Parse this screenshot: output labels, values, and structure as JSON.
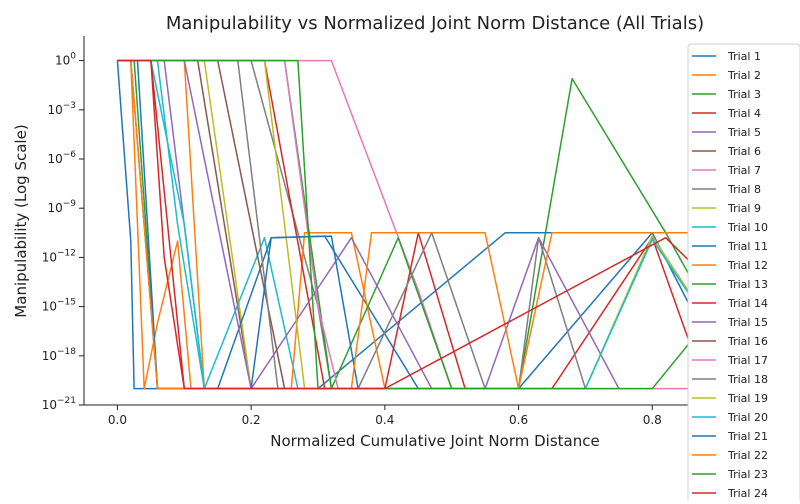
{
  "chart_data": {
    "type": "line",
    "title": "Manipulability vs Normalized Joint Norm Distance (All Trials)",
    "xlabel": "Normalized Cumulative Joint Norm Distance",
    "ylabel": "Manipulability (Log Scale)",
    "xlim": [
      -0.05,
      1.0
    ],
    "ylim_exponent": [
      -21,
      1.5
    ],
    "yscale": "log",
    "grid": false,
    "legend_position": "top-right",
    "x_ticks": [
      {
        "value": 0.0,
        "label": "0.0"
      },
      {
        "value": 0.2,
        "label": "0.2"
      },
      {
        "value": 0.4,
        "label": "0.4"
      },
      {
        "value": 0.6,
        "label": "0.6"
      },
      {
        "value": 0.8,
        "label": "0.8"
      }
    ],
    "y_ticks": [
      {
        "exp": 0,
        "base": "10",
        "sup": "0"
      },
      {
        "exp": -3,
        "base": "10",
        "sup": "−3"
      },
      {
        "exp": -6,
        "base": "10",
        "sup": "−6"
      },
      {
        "exp": -9,
        "base": "10",
        "sup": "−9"
      },
      {
        "exp": -12,
        "base": "10",
        "sup": "−12"
      },
      {
        "exp": -15,
        "base": "10",
        "sup": "−15"
      },
      {
        "exp": -18,
        "base": "10",
        "sup": "−18"
      },
      {
        "exp": -21,
        "base": "10",
        "sup": "−21"
      }
    ],
    "series": [
      {
        "name": "Trial 1",
        "color": "#1f77b4",
        "points": [
          [
            0.0,
            0
          ],
          [
            0.02,
            -11
          ],
          [
            0.025,
            -20
          ],
          [
            0.3,
            -20
          ],
          [
            0.58,
            -10.5
          ],
          [
            0.95,
            -10.5
          ]
        ]
      },
      {
        "name": "Trial 2",
        "color": "#ff7f0e",
        "points": [
          [
            0.0,
            0
          ],
          [
            0.02,
            0
          ],
          [
            0.04,
            -20
          ],
          [
            0.06,
            -16
          ],
          [
            0.09,
            -11
          ],
          [
            0.11,
            -20
          ],
          [
            0.14,
            -20
          ],
          [
            0.18,
            -20
          ],
          [
            0.2,
            -20
          ]
        ]
      },
      {
        "name": "Trial 3",
        "color": "#2ca02c",
        "points": [
          [
            0.0,
            0
          ],
          [
            0.025,
            0
          ],
          [
            0.06,
            -20
          ],
          [
            0.6,
            -20
          ],
          [
            0.68,
            -1.1
          ],
          [
            0.82,
            -10.5
          ],
          [
            0.95,
            -20
          ]
        ]
      },
      {
        "name": "Trial 4",
        "color": "#d62728",
        "points": [
          [
            0.0,
            0
          ],
          [
            0.05,
            0
          ],
          [
            0.07,
            -12
          ],
          [
            0.1,
            -20
          ],
          [
            0.45,
            -20
          ],
          [
            0.55,
            -20
          ]
        ]
      },
      {
        "name": "Trial 5",
        "color": "#9467bd",
        "points": [
          [
            0.0,
            0
          ],
          [
            0.07,
            0
          ],
          [
            0.13,
            -20
          ],
          [
            0.35,
            -20
          ],
          [
            0.4,
            -20
          ]
        ]
      },
      {
        "name": "Trial 6",
        "color": "#8c564b",
        "points": [
          [
            0.0,
            0
          ],
          [
            0.12,
            0
          ],
          [
            0.2,
            -20
          ],
          [
            0.32,
            -20
          ]
        ]
      },
      {
        "name": "Trial 7",
        "color": "#e377c2",
        "points": [
          [
            0.0,
            0
          ],
          [
            0.32,
            0
          ],
          [
            0.45,
            -14
          ],
          [
            0.5,
            -20
          ],
          [
            0.9,
            -20
          ]
        ]
      },
      {
        "name": "Trial 8",
        "color": "#7f7f7f",
        "points": [
          [
            0.0,
            0
          ],
          [
            0.2,
            0
          ],
          [
            0.3,
            -15
          ],
          [
            0.32,
            -20
          ],
          [
            0.5,
            -20
          ]
        ]
      },
      {
        "name": "Trial 9",
        "color": "#bcbd22",
        "points": [
          [
            0.0,
            0
          ],
          [
            0.13,
            0
          ],
          [
            0.2,
            -20
          ],
          [
            0.6,
            -20
          ]
        ]
      },
      {
        "name": "Trial 10",
        "color": "#17becf",
        "points": [
          [
            0.0,
            0
          ],
          [
            0.06,
            0
          ],
          [
            0.09,
            -10
          ],
          [
            0.13,
            -20
          ],
          [
            0.22,
            -10.8
          ],
          [
            0.27,
            -20
          ]
        ]
      },
      {
        "name": "Trial 11",
        "color": "#1f77b4",
        "points": [
          [
            0.0,
            0
          ],
          [
            0.03,
            0
          ],
          [
            0.06,
            -20
          ],
          [
            0.15,
            -20
          ],
          [
            0.23,
            -10.8
          ],
          [
            0.31,
            -10.7
          ],
          [
            0.45,
            -20
          ],
          [
            0.6,
            -20
          ],
          [
            0.8,
            -10.5
          ],
          [
            0.92,
            -20
          ]
        ]
      },
      {
        "name": "Trial 12",
        "color": "#ff7f0e",
        "points": [
          [
            0.0,
            0
          ],
          [
            0.1,
            0
          ],
          [
            0.13,
            -20
          ],
          [
            0.26,
            -20
          ],
          [
            0.28,
            -10.5
          ],
          [
            0.35,
            -10.5
          ],
          [
            0.4,
            -20
          ]
        ]
      },
      {
        "name": "Trial 13",
        "color": "#2ca02c",
        "points": [
          [
            0.0,
            0
          ],
          [
            0.25,
            0
          ],
          [
            0.32,
            -20
          ],
          [
            0.42,
            -10.8
          ],
          [
            0.5,
            -20
          ]
        ]
      },
      {
        "name": "Trial 14",
        "color": "#d62728",
        "points": [
          [
            0.0,
            0
          ],
          [
            0.22,
            0
          ],
          [
            0.31,
            -20
          ],
          [
            0.4,
            -20
          ],
          [
            0.45,
            -10.5
          ],
          [
            0.52,
            -20
          ],
          [
            0.65,
            -20
          ],
          [
            0.8,
            -10.8
          ],
          [
            0.88,
            -20
          ]
        ]
      },
      {
        "name": "Trial 15",
        "color": "#9467bd",
        "points": [
          [
            0.0,
            0
          ],
          [
            0.1,
            0
          ],
          [
            0.2,
            -20
          ],
          [
            0.35,
            -10.8
          ],
          [
            0.47,
            -20
          ],
          [
            0.55,
            -20
          ],
          [
            0.63,
            -10.8
          ],
          [
            0.75,
            -20
          ]
        ]
      },
      {
        "name": "Trial 16",
        "color": "#8c564b",
        "points": [
          [
            0.0,
            0
          ],
          [
            0.15,
            0
          ],
          [
            0.25,
            -20
          ]
        ]
      },
      {
        "name": "Trial 17",
        "color": "#e377c2",
        "points": [
          [
            0.0,
            0
          ],
          [
            0.25,
            0
          ],
          [
            0.3,
            -15
          ],
          [
            0.33,
            -20
          ]
        ]
      },
      {
        "name": "Trial 18",
        "color": "#7f7f7f",
        "points": [
          [
            0.0,
            0
          ],
          [
            0.18,
            0
          ],
          [
            0.24,
            -20
          ],
          [
            0.36,
            -20
          ],
          [
            0.47,
            -10.5
          ],
          [
            0.55,
            -20
          ],
          [
            0.6,
            -20
          ],
          [
            0.63,
            -10.8
          ],
          [
            0.7,
            -20
          ]
        ]
      },
      {
        "name": "Trial 19",
        "color": "#bcbd22",
        "points": [
          [
            0.0,
            0
          ],
          [
            0.22,
            0
          ],
          [
            0.28,
            -20
          ],
          [
            0.7,
            -20
          ],
          [
            0.8,
            -10.7
          ],
          [
            0.95,
            -20
          ]
        ]
      },
      {
        "name": "Trial 20",
        "color": "#17becf",
        "points": [
          [
            0.0,
            0
          ],
          [
            0.05,
            0
          ],
          [
            0.1,
            -10
          ],
          [
            0.13,
            -20
          ],
          [
            0.7,
            -20
          ],
          [
            0.8,
            -10.9
          ],
          [
            0.95,
            -20
          ]
        ]
      },
      {
        "name": "Trial 21",
        "color": "#1f77b4",
        "points": [
          [
            0.0,
            0
          ],
          [
            0.02,
            0
          ],
          [
            0.06,
            -20
          ],
          [
            0.2,
            -20
          ],
          [
            0.23,
            -10.8
          ],
          [
            0.32,
            -10.7
          ],
          [
            0.36,
            -20
          ]
        ]
      },
      {
        "name": "Trial 22",
        "color": "#ff7f0e",
        "points": [
          [
            0.0,
            0
          ],
          [
            0.02,
            0
          ],
          [
            0.06,
            -20
          ],
          [
            0.35,
            -20
          ],
          [
            0.38,
            -10.5
          ],
          [
            0.55,
            -10.5
          ],
          [
            0.6,
            -20
          ],
          [
            0.65,
            -10.5
          ],
          [
            0.95,
            -10.5
          ]
        ]
      },
      {
        "name": "Trial 23",
        "color": "#2ca02c",
        "points": [
          [
            0.0,
            0
          ],
          [
            0.27,
            0
          ],
          [
            0.3,
            -20
          ],
          [
            0.6,
            -20
          ],
          [
            0.8,
            -20
          ],
          [
            0.92,
            -14
          ],
          [
            0.95,
            -12
          ]
        ]
      },
      {
        "name": "Trial 24",
        "color": "#d62728",
        "points": [
          [
            0.0,
            0
          ],
          [
            0.05,
            0
          ],
          [
            0.1,
            -20
          ],
          [
            0.35,
            -20
          ],
          [
            0.4,
            -20
          ],
          [
            0.82,
            -10.8
          ],
          [
            0.9,
            -14
          ],
          [
            0.95,
            -20
          ]
        ]
      }
    ]
  }
}
